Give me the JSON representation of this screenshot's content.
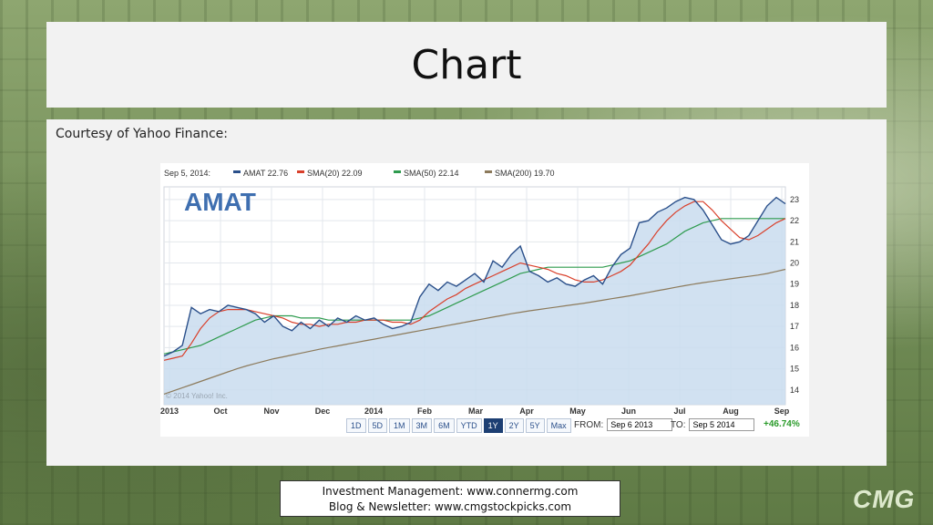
{
  "slide": {
    "title": "Chart",
    "courtesy": "Courtesy of Yahoo Finance:",
    "footer_line1": "Investment Management:  www.connermg.com",
    "footer_line2": "Blog & Newsletter: www.cmgstockpicks.com",
    "logo_text": "CMG"
  },
  "chart_data": {
    "type": "line",
    "ticker": "AMAT",
    "legend": {
      "date": "Sep 5, 2014:",
      "items": [
        {
          "label": "AMAT 22.76",
          "color": "#2a4f8a"
        },
        {
          "label": "SMA(20) 22.09",
          "color": "#d9402b"
        },
        {
          "label": "SMA(50) 22.14",
          "color": "#2e9b4e"
        },
        {
          "label": "SMA(200) 19.70",
          "color": "#8c7a5b"
        }
      ]
    },
    "x_labels": [
      "2013",
      "Oct",
      "Nov",
      "Dec",
      "2014",
      "Feb",
      "Mar",
      "Apr",
      "May",
      "Jun",
      "Jul",
      "Aug",
      "Sep"
    ],
    "y_ticks": [
      14,
      15,
      16,
      17,
      18,
      19,
      20,
      21,
      22,
      23
    ],
    "ylim": [
      13.3,
      23.6
    ],
    "watermark": "© 2014 Yahoo! Inc.",
    "series": [
      {
        "name": "AMAT",
        "color": "#2a4f8a",
        "values": [
          15.6,
          15.8,
          16.1,
          17.9,
          17.6,
          17.8,
          17.7,
          18.0,
          17.9,
          17.8,
          17.6,
          17.2,
          17.5,
          17.0,
          16.8,
          17.2,
          16.9,
          17.3,
          17.0,
          17.4,
          17.2,
          17.5,
          17.3,
          17.4,
          17.1,
          16.9,
          17.0,
          17.2,
          18.4,
          19.0,
          18.7,
          19.1,
          18.9,
          19.2,
          19.5,
          19.1,
          20.1,
          19.8,
          20.4,
          20.8,
          19.6,
          19.4,
          19.1,
          19.3,
          19.0,
          18.9,
          19.2,
          19.4,
          19.0,
          19.8,
          20.4,
          20.7,
          21.9,
          22.0,
          22.4,
          22.6,
          22.9,
          23.1,
          23.0,
          22.5,
          21.8,
          21.1,
          20.9,
          21.0,
          21.3,
          22.0,
          22.7,
          23.1,
          22.8
        ]
      },
      {
        "name": "SMA(20)",
        "color": "#d9402b",
        "values": [
          15.4,
          15.5,
          15.6,
          16.2,
          16.9,
          17.4,
          17.7,
          17.8,
          17.8,
          17.8,
          17.7,
          17.6,
          17.5,
          17.4,
          17.2,
          17.1,
          17.1,
          17.0,
          17.1,
          17.1,
          17.2,
          17.2,
          17.3,
          17.3,
          17.3,
          17.2,
          17.2,
          17.1,
          17.3,
          17.7,
          18.0,
          18.3,
          18.5,
          18.8,
          19.0,
          19.2,
          19.4,
          19.6,
          19.8,
          20.0,
          19.9,
          19.8,
          19.7,
          19.5,
          19.4,
          19.2,
          19.1,
          19.1,
          19.2,
          19.4,
          19.6,
          19.9,
          20.4,
          20.9,
          21.5,
          22.0,
          22.4,
          22.7,
          22.9,
          22.9,
          22.5,
          22.0,
          21.6,
          21.2,
          21.1,
          21.3,
          21.6,
          21.9,
          22.1
        ]
      },
      {
        "name": "SMA(50)",
        "color": "#2e9b4e",
        "values": [
          15.7,
          15.8,
          15.9,
          16.0,
          16.1,
          16.3,
          16.5,
          16.7,
          16.9,
          17.1,
          17.3,
          17.4,
          17.5,
          17.5,
          17.5,
          17.4,
          17.4,
          17.4,
          17.3,
          17.3,
          17.3,
          17.3,
          17.3,
          17.3,
          17.3,
          17.3,
          17.3,
          17.3,
          17.4,
          17.5,
          17.7,
          17.9,
          18.1,
          18.3,
          18.5,
          18.7,
          18.9,
          19.1,
          19.3,
          19.5,
          19.6,
          19.7,
          19.8,
          19.8,
          19.8,
          19.8,
          19.8,
          19.8,
          19.8,
          19.9,
          20.0,
          20.1,
          20.3,
          20.5,
          20.7,
          20.9,
          21.2,
          21.5,
          21.7,
          21.9,
          22.0,
          22.1,
          22.1,
          22.1,
          22.1,
          22.1,
          22.1,
          22.1,
          22.1
        ]
      },
      {
        "name": "SMA(200)",
        "color": "#8c7a5b",
        "values": [
          13.8,
          13.95,
          14.1,
          14.25,
          14.4,
          14.55,
          14.7,
          14.85,
          15.0,
          15.13,
          15.25,
          15.36,
          15.47,
          15.56,
          15.65,
          15.74,
          15.83,
          15.92,
          16.0,
          16.08,
          16.16,
          16.24,
          16.32,
          16.4,
          16.48,
          16.56,
          16.64,
          16.72,
          16.8,
          16.88,
          16.96,
          17.04,
          17.12,
          17.2,
          17.28,
          17.36,
          17.44,
          17.52,
          17.6,
          17.67,
          17.74,
          17.8,
          17.86,
          17.92,
          17.98,
          18.04,
          18.1,
          18.17,
          18.24,
          18.31,
          18.38,
          18.45,
          18.53,
          18.61,
          18.69,
          18.77,
          18.85,
          18.93,
          19.0,
          19.07,
          19.13,
          19.19,
          19.25,
          19.31,
          19.37,
          19.43,
          19.5,
          19.6,
          19.7
        ]
      }
    ],
    "range_buttons": [
      "1D",
      "5D",
      "1M",
      "3M",
      "6M",
      "YTD",
      "1Y",
      "2Y",
      "5Y",
      "Max"
    ],
    "active_range": "1Y",
    "from_label": "FROM:",
    "from_value": "Sep 6 2013",
    "to_label": "TO:",
    "to_value": "Sep 5 2014",
    "change": "+46.74%"
  }
}
